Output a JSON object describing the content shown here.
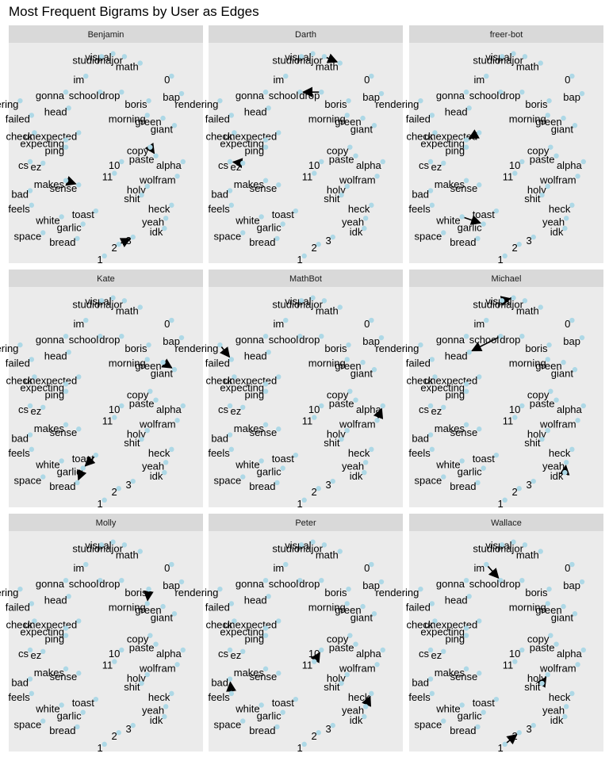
{
  "chart_data": {
    "type": "network",
    "title": "Most Frequent Bigrams by User as Edges",
    "xlabel": "",
    "ylabel": "",
    "colors": {
      "panel_background": "#ebebeb",
      "strip_background": "#d9d9d9",
      "node_point": "#add8e6",
      "edge": "#000000"
    },
    "grid": false,
    "facets": [
      "Benjamin",
      "Darth",
      "freer-bot",
      "Kate",
      "MathBot",
      "Michael",
      "Molly",
      "Peter",
      "Wallace"
    ],
    "nodes": [
      {
        "word": "visual",
        "x": 0.5,
        "y": 9.55
      },
      {
        "word": "studio",
        "x": -0.3,
        "y": 9.35
      },
      {
        "word": "major",
        "x": 1.3,
        "y": 9.35
      },
      {
        "word": "math",
        "x": 2.4,
        "y": 8.9
      },
      {
        "word": "im",
        "x": -1.4,
        "y": 8.0
      },
      {
        "word": "0",
        "x": 4.6,
        "y": 8.0
      },
      {
        "word": "gonna",
        "x": -2.8,
        "y": 6.9
      },
      {
        "word": "school",
        "x": -0.4,
        "y": 6.9
      },
      {
        "word": "drop",
        "x": 1.1,
        "y": 6.9
      },
      {
        "word": "bap",
        "x": 5.3,
        "y": 6.8
      },
      {
        "word": "rendering",
        "x": -6.0,
        "y": 6.3
      },
      {
        "word": "head",
        "x": -2.6,
        "y": 5.8
      },
      {
        "word": "boris",
        "x": 3.0,
        "y": 6.3
      },
      {
        "word": "failed",
        "x": -5.2,
        "y": 5.3
      },
      {
        "word": "morning",
        "x": 2.9,
        "y": 5.3
      },
      {
        "word": "green",
        "x": 4.0,
        "y": 5.1
      },
      {
        "word": "giant",
        "x": 4.8,
        "y": 4.6
      },
      {
        "word": "check",
        "x": -5.0,
        "y": 4.1
      },
      {
        "word": "unexpected",
        "x": -1.9,
        "y": 4.1
      },
      {
        "word": "expecting",
        "x": -2.8,
        "y": 3.6
      },
      {
        "word": "ping",
        "x": -2.8,
        "y": 3.1
      },
      {
        "word": "copy",
        "x": 3.1,
        "y": 3.1
      },
      {
        "word": "paste",
        "x": 3.5,
        "y": 2.5
      },
      {
        "word": "alpha",
        "x": 5.4,
        "y": 2.1
      },
      {
        "word": "cs",
        "x": -5.3,
        "y": 2.1
      },
      {
        "word": "ez",
        "x": -4.4,
        "y": 2.0
      },
      {
        "word": "10",
        "x": 1.1,
        "y": 2.1
      },
      {
        "word": "11",
        "x": 0.6,
        "y": 1.3
      },
      {
        "word": "wolfram",
        "x": 5.0,
        "y": 1.1
      },
      {
        "word": "makes",
        "x": -2.8,
        "y": 0.8
      },
      {
        "word": "sense",
        "x": -1.9,
        "y": 0.5
      },
      {
        "word": "holy",
        "x": 2.9,
        "y": 0.4
      },
      {
        "word": "shit",
        "x": 2.5,
        "y": -0.2
      },
      {
        "word": "bad",
        "x": -5.3,
        "y": 0.1
      },
      {
        "word": "feels",
        "x": -5.2,
        "y": -0.9
      },
      {
        "word": "heck",
        "x": 4.6,
        "y": -0.9
      },
      {
        "word": "toast",
        "x": -0.7,
        "y": -1.3
      },
      {
        "word": "white",
        "x": -3.1,
        "y": -1.7
      },
      {
        "word": "yeah",
        "x": 4.2,
        "y": -1.8
      },
      {
        "word": "garlic",
        "x": -1.6,
        "y": -2.2
      },
      {
        "word": "idk",
        "x": 4.1,
        "y": -2.5
      },
      {
        "word": "space",
        "x": -4.4,
        "y": -2.8
      },
      {
        "word": "bread",
        "x": -2.0,
        "y": -3.2
      },
      {
        "word": "3",
        "x": 1.9,
        "y": -3.1
      },
      {
        "word": "2",
        "x": 0.9,
        "y": -3.6
      },
      {
        "word": "1",
        "x": -0.1,
        "y": -4.4
      }
    ],
    "edges": [
      {
        "user": "Benjamin",
        "from": "copy",
        "to": "paste"
      },
      {
        "user": "Benjamin",
        "from": "makes",
        "to": "sense"
      },
      {
        "user": "Benjamin",
        "from": "2",
        "to": "3"
      },
      {
        "user": "Darth",
        "from": "major",
        "to": "math"
      },
      {
        "user": "Darth",
        "from": "drop",
        "to": "school"
      },
      {
        "user": "Darth",
        "from": "ez",
        "to": "cs"
      },
      {
        "user": "freer-bot",
        "from": "unexpected",
        "to": "expecting"
      },
      {
        "user": "freer-bot",
        "from": "white",
        "to": "garlic"
      },
      {
        "user": "Kate",
        "from": "green",
        "to": "giant"
      },
      {
        "user": "Kate",
        "from": "toast",
        "to": "garlic"
      },
      {
        "user": "Kate",
        "from": "garlic",
        "to": "bread"
      },
      {
        "user": "MathBot",
        "from": "rendering",
        "to": "failed"
      },
      {
        "user": "MathBot",
        "from": "wolfram",
        "to": "alpha"
      },
      {
        "user": "Michael",
        "from": "studio",
        "to": "visual"
      },
      {
        "user": "Michael",
        "from": "school",
        "to": "head"
      },
      {
        "user": "Michael",
        "from": "idk",
        "to": "yeah"
      },
      {
        "user": "Molly",
        "from": "boris",
        "to": "morning"
      },
      {
        "user": "Peter",
        "from": "11",
        "to": "10"
      },
      {
        "user": "Peter",
        "from": "feels",
        "to": "bad"
      },
      {
        "user": "Peter",
        "from": "yeah",
        "to": "heck"
      },
      {
        "user": "Wallace",
        "from": "im",
        "to": "school"
      },
      {
        "user": "Wallace",
        "from": "shit",
        "to": "holy"
      },
      {
        "user": "Wallace",
        "from": "1",
        "to": "2"
      }
    ]
  }
}
